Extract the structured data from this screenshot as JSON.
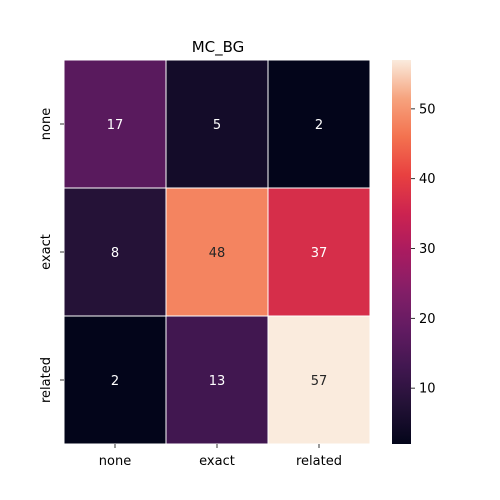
{
  "chart_data": {
    "type": "heatmap",
    "title": "MC_BG",
    "xlabel": "",
    "ylabel": "",
    "x_categories": [
      "none",
      "exact",
      "related"
    ],
    "y_categories": [
      "none",
      "exact",
      "related"
    ],
    "values": [
      [
        17,
        5,
        2
      ],
      [
        8,
        48,
        37
      ],
      [
        2,
        13,
        57
      ]
    ],
    "colorbar": {
      "range": [
        2,
        57
      ],
      "ticks": [
        10,
        20,
        30,
        40,
        50
      ],
      "tick_labels": [
        "10",
        "20",
        "30",
        "40",
        "50"
      ],
      "colormap": "rocket"
    },
    "annotations": true,
    "grid": false
  }
}
